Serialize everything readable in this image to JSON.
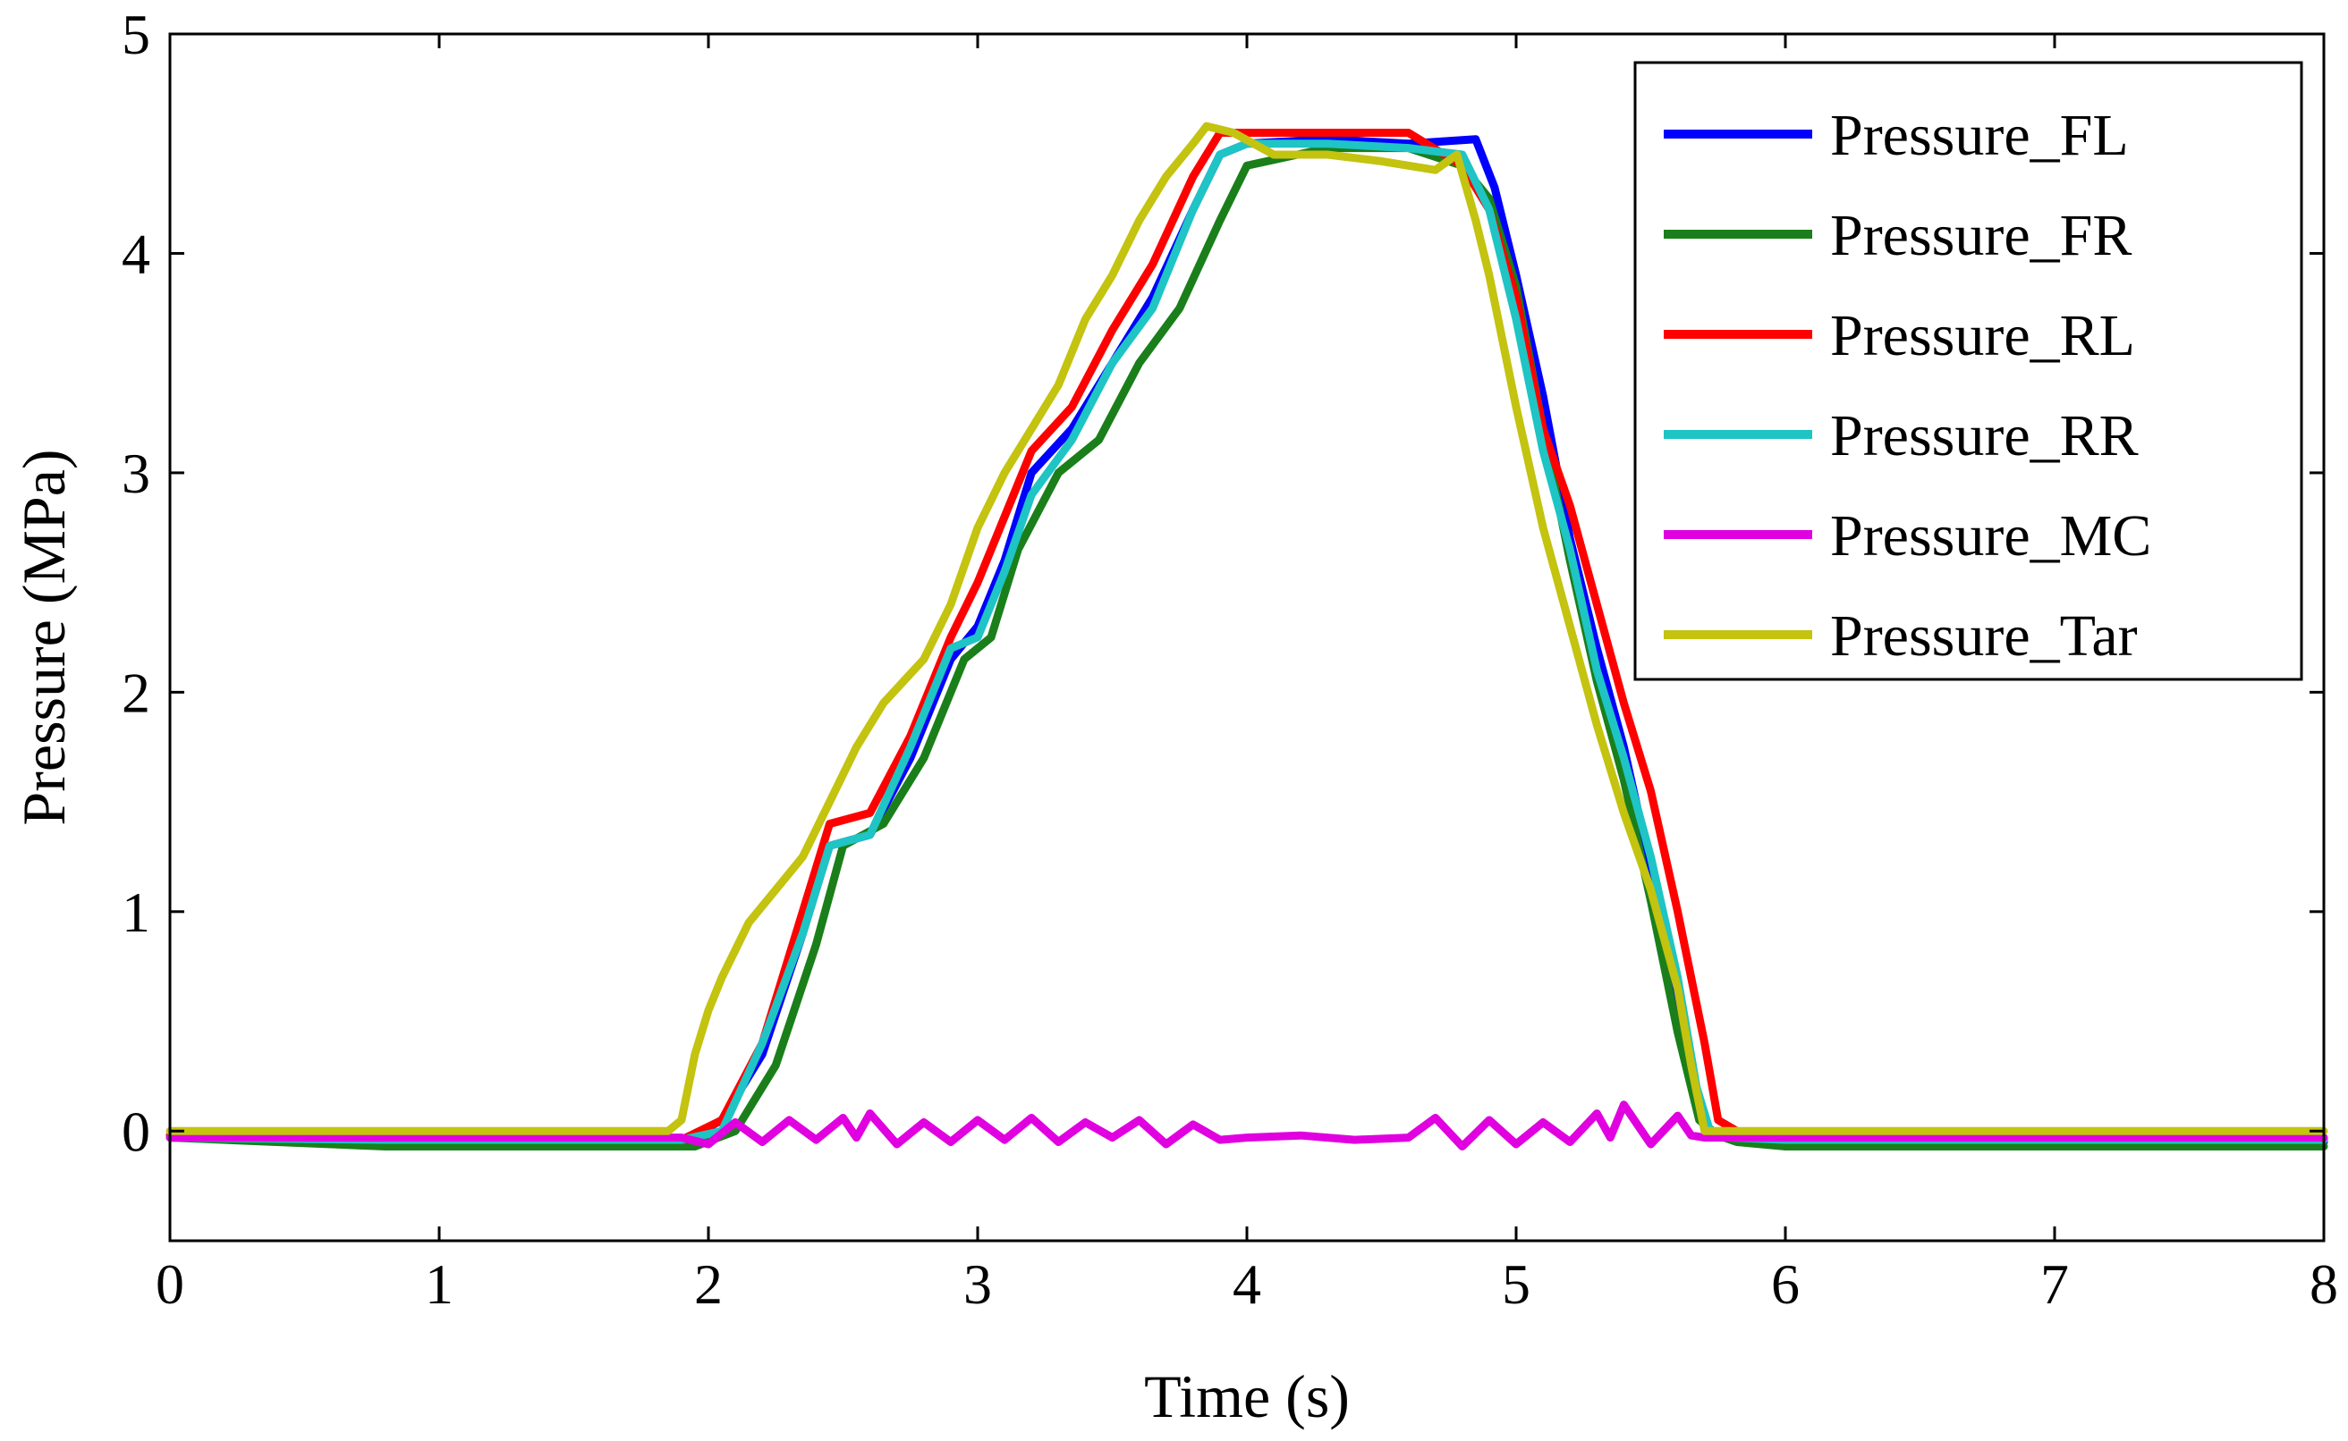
{
  "chart_data": {
    "type": "line",
    "title": "",
    "xlabel": "Time (s)",
    "ylabel": "Pressure (MPa)",
    "xlim": [
      0,
      8
    ],
    "ylim": [
      -0.5,
      5
    ],
    "xticks": [
      0,
      1,
      2,
      3,
      4,
      5,
      6,
      7,
      8
    ],
    "yticks": [
      0,
      1,
      2,
      3,
      4,
      5
    ],
    "grid": false,
    "legend_position": "top-right",
    "series": [
      {
        "name": "Pressure_FL",
        "color": "#0000ff",
        "x": [
          0,
          0.8,
          1.9,
          2.05,
          2.2,
          2.35,
          2.45,
          2.6,
          2.75,
          2.9,
          3.0,
          3.1,
          3.2,
          3.35,
          3.5,
          3.65,
          3.8,
          3.9,
          4.0,
          4.3,
          4.6,
          4.85,
          4.92,
          5.0,
          5.1,
          5.2,
          5.3,
          5.4,
          5.5,
          5.6,
          5.67,
          5.72,
          5.8,
          6.0,
          8.0
        ],
        "y": [
          -0.02,
          -0.05,
          -0.05,
          0.05,
          0.35,
          0.9,
          1.3,
          1.35,
          1.7,
          2.15,
          2.3,
          2.6,
          3.0,
          3.2,
          3.5,
          3.8,
          4.2,
          4.45,
          4.5,
          4.52,
          4.5,
          4.52,
          4.3,
          3.9,
          3.35,
          2.7,
          2.2,
          1.75,
          1.2,
          0.6,
          0.15,
          0.0,
          -0.03,
          -0.05,
          -0.05
        ]
      },
      {
        "name": "Pressure_FR",
        "color": "#1a7f1a",
        "x": [
          0,
          0.8,
          1.95,
          2.1,
          2.25,
          2.4,
          2.5,
          2.65,
          2.8,
          2.95,
          3.05,
          3.15,
          3.3,
          3.45,
          3.6,
          3.75,
          3.9,
          4.0,
          4.3,
          4.6,
          4.8,
          4.9,
          5.0,
          5.1,
          5.2,
          5.3,
          5.4,
          5.5,
          5.6,
          5.68,
          5.75,
          5.82,
          6.0,
          8.0
        ],
        "y": [
          -0.03,
          -0.07,
          -0.07,
          0.0,
          0.3,
          0.85,
          1.3,
          1.4,
          1.7,
          2.15,
          2.25,
          2.65,
          3.0,
          3.15,
          3.5,
          3.75,
          4.15,
          4.4,
          4.48,
          4.48,
          4.4,
          4.25,
          3.85,
          3.2,
          2.6,
          2.05,
          1.6,
          1.05,
          0.45,
          0.05,
          -0.02,
          -0.05,
          -0.07,
          -0.07
        ]
      },
      {
        "name": "Pressure_RL",
        "color": "#ff0000",
        "x": [
          0,
          0.8,
          1.9,
          2.05,
          2.2,
          2.35,
          2.45,
          2.6,
          2.75,
          2.9,
          3.0,
          3.1,
          3.2,
          3.35,
          3.5,
          3.65,
          3.8,
          3.9,
          4.0,
          4.3,
          4.6,
          4.8,
          4.9,
          5.0,
          5.1,
          5.2,
          5.3,
          5.4,
          5.5,
          5.6,
          5.7,
          5.75,
          5.82,
          6.0,
          8.0
        ],
        "y": [
          -0.02,
          -0.04,
          -0.04,
          0.05,
          0.4,
          1.0,
          1.4,
          1.45,
          1.8,
          2.25,
          2.5,
          2.8,
          3.1,
          3.3,
          3.65,
          3.95,
          4.35,
          4.55,
          4.55,
          4.55,
          4.55,
          4.4,
          4.2,
          3.8,
          3.2,
          2.85,
          2.4,
          1.95,
          1.55,
          1.0,
          0.4,
          0.05,
          0.0,
          -0.04,
          -0.04
        ]
      },
      {
        "name": "Pressure_RR",
        "color": "#1fc4c4",
        "x": [
          0,
          0.8,
          1.9,
          2.05,
          2.2,
          2.35,
          2.45,
          2.6,
          2.75,
          2.9,
          3.0,
          3.1,
          3.2,
          3.35,
          3.5,
          3.65,
          3.8,
          3.9,
          4.0,
          4.3,
          4.6,
          4.8,
          4.9,
          5.0,
          5.1,
          5.2,
          5.3,
          5.4,
          5.5,
          5.6,
          5.67,
          5.72,
          5.8,
          6.0,
          8.0
        ],
        "y": [
          -0.03,
          -0.04,
          -0.04,
          0.0,
          0.4,
          0.9,
          1.3,
          1.35,
          1.75,
          2.2,
          2.25,
          2.55,
          2.9,
          3.15,
          3.5,
          3.75,
          4.2,
          4.45,
          4.5,
          4.5,
          4.48,
          4.45,
          4.2,
          3.7,
          3.1,
          2.65,
          2.1,
          1.7,
          1.25,
          0.7,
          0.2,
          0.0,
          -0.03,
          -0.04,
          -0.04
        ]
      },
      {
        "name": "Pressure_MC",
        "color": "#e000e0",
        "x": [
          0,
          1.9,
          2.0,
          2.1,
          2.2,
          2.3,
          2.4,
          2.5,
          2.55,
          2.6,
          2.7,
          2.8,
          2.9,
          3.0,
          3.1,
          3.2,
          3.3,
          3.4,
          3.5,
          3.6,
          3.7,
          3.8,
          3.9,
          4.0,
          4.2,
          4.4,
          4.6,
          4.7,
          4.8,
          4.9,
          5.0,
          5.1,
          5.2,
          5.3,
          5.35,
          5.4,
          5.5,
          5.6,
          5.65,
          5.7,
          8.0
        ],
        "y": [
          -0.03,
          -0.03,
          -0.06,
          0.04,
          -0.05,
          0.05,
          -0.04,
          0.06,
          -0.03,
          0.08,
          -0.06,
          0.04,
          -0.05,
          0.05,
          -0.04,
          0.06,
          -0.05,
          0.04,
          -0.03,
          0.05,
          -0.06,
          0.03,
          -0.04,
          -0.03,
          -0.02,
          -0.04,
          -0.03,
          0.06,
          -0.07,
          0.05,
          -0.06,
          0.04,
          -0.05,
          0.08,
          -0.03,
          0.12,
          -0.06,
          0.07,
          -0.02,
          -0.03,
          -0.03
        ]
      },
      {
        "name": "Pressure_Tar",
        "color": "#c3c310",
        "x": [
          0,
          1.85,
          1.9,
          1.95,
          2.0,
          2.05,
          2.15,
          2.25,
          2.35,
          2.45,
          2.55,
          2.65,
          2.8,
          2.9,
          3.0,
          3.1,
          3.2,
          3.3,
          3.4,
          3.5,
          3.6,
          3.7,
          3.8,
          3.85,
          3.95,
          4.1,
          4.3,
          4.5,
          4.7,
          4.78,
          4.85,
          4.9,
          5.0,
          5.1,
          5.2,
          5.3,
          5.4,
          5.5,
          5.6,
          5.65,
          5.7,
          8.0
        ],
        "y": [
          0.0,
          0.0,
          0.05,
          0.35,
          0.55,
          0.7,
          0.95,
          1.1,
          1.25,
          1.5,
          1.75,
          1.95,
          2.15,
          2.4,
          2.75,
          3.0,
          3.2,
          3.4,
          3.7,
          3.9,
          4.15,
          4.35,
          4.5,
          4.58,
          4.55,
          4.45,
          4.45,
          4.42,
          4.38,
          4.45,
          4.15,
          3.9,
          3.3,
          2.75,
          2.3,
          1.85,
          1.45,
          1.1,
          0.65,
          0.3,
          0.0,
          0.0
        ]
      }
    ]
  }
}
